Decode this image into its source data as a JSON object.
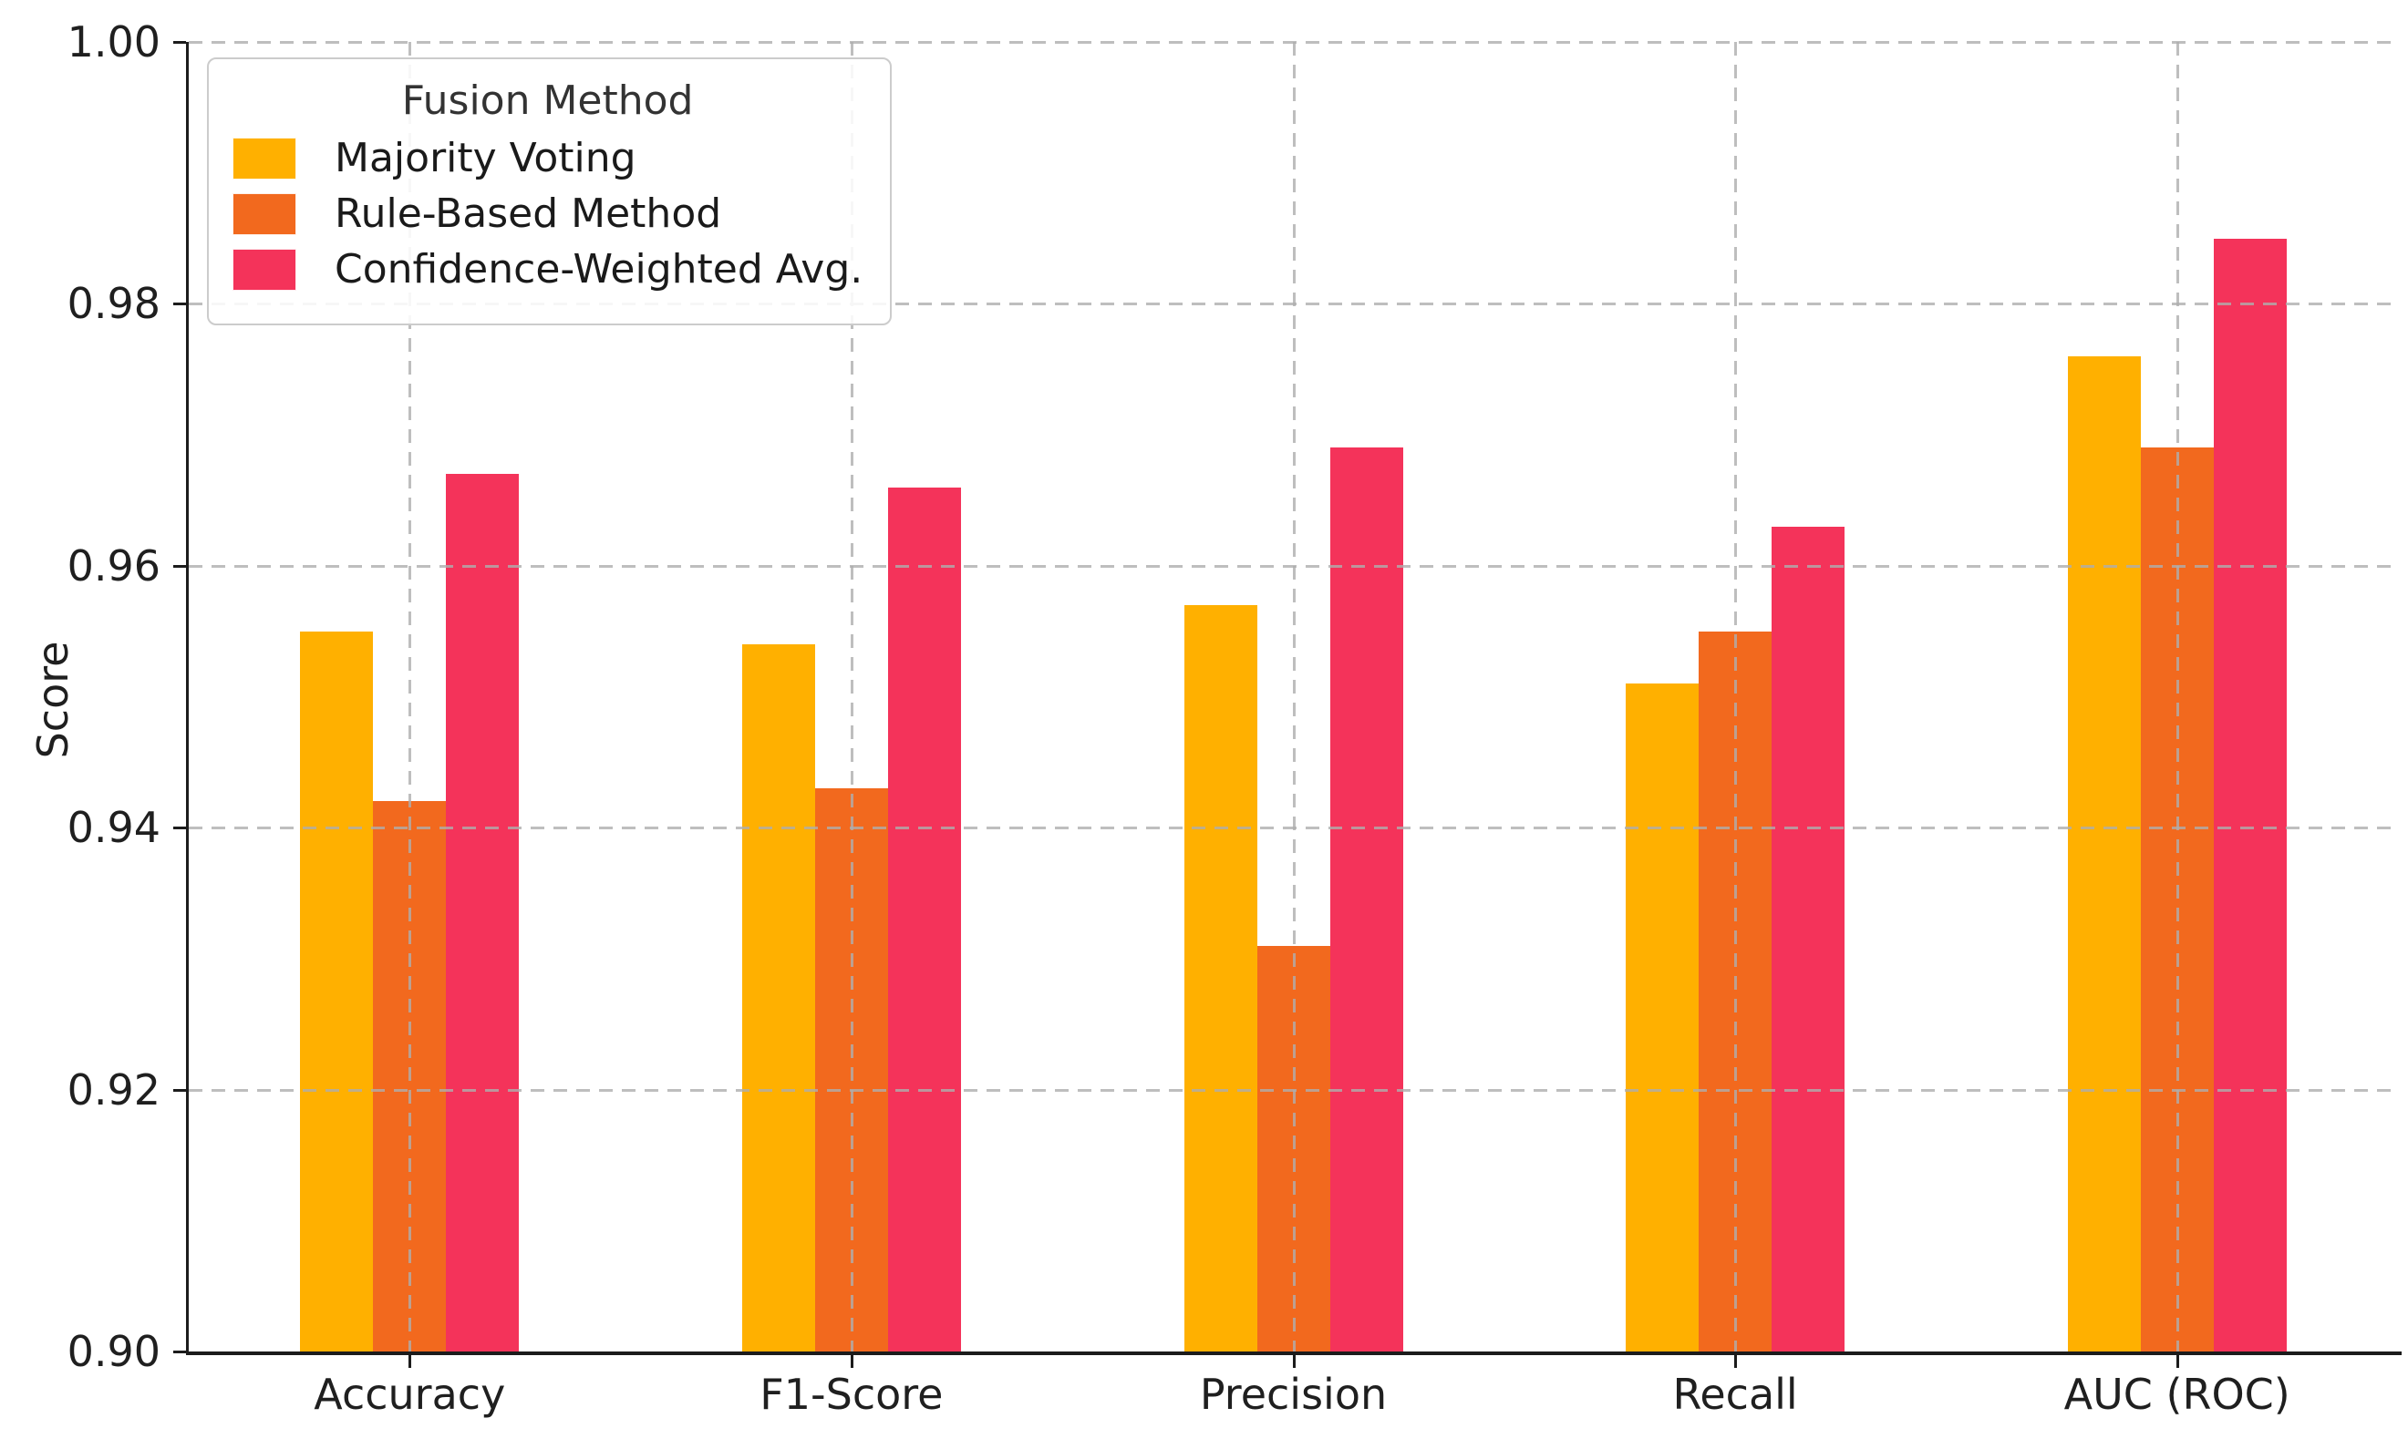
{
  "figure": {
    "background_color": "#ffffff",
    "text_color": "#1f1f1f",
    "spine_color": "#1c1c1c",
    "grid_color": "#aeaeae"
  },
  "legend": {
    "title": "Fusion Method"
  },
  "chart_data": {
    "type": "bar",
    "title": "",
    "xlabel": "",
    "ylabel": "Score",
    "ylim": [
      0.9,
      1.0
    ],
    "yticks": [
      0.9,
      0.92,
      0.94,
      0.96,
      0.98,
      1.0
    ],
    "ytick_labels": [
      "0.90",
      "0.92",
      "0.94",
      "0.96",
      "0.98",
      "1.00"
    ],
    "grid": true,
    "grid_style": "dashed",
    "legend_position": "upper left",
    "legend_title": "Fusion Method",
    "categories": [
      "Accuracy",
      "F1-Score",
      "Precision",
      "Recall",
      "AUC (ROC)"
    ],
    "series": [
      {
        "name": "Majority Voting",
        "color": "#FFB000",
        "values": [
          0.955,
          0.954,
          0.957,
          0.951,
          0.976
        ]
      },
      {
        "name": "Rule-Based Method",
        "color": "#F2691E",
        "values": [
          0.942,
          0.943,
          0.931,
          0.955,
          0.969
        ]
      },
      {
        "name": "Confidence-Weighted Avg.",
        "color": "#F4335A",
        "values": [
          0.967,
          0.966,
          0.969,
          0.963,
          0.985
        ]
      }
    ]
  }
}
